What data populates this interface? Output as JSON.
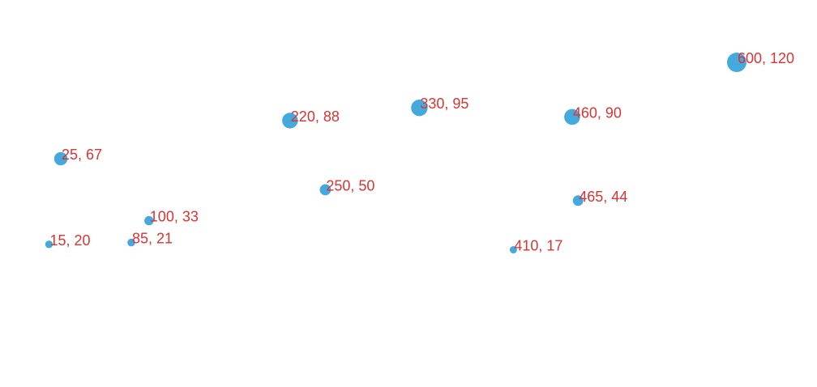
{
  "chart_data": {
    "type": "scatter",
    "title": "",
    "xlabel": "",
    "ylabel": "",
    "grid": false,
    "legend": "none",
    "x_range": [
      5,
      600
    ],
    "y_range": [
      -5,
      120
    ],
    "colors": {
      "point": "#44aadd",
      "label": "#dd3333"
    },
    "points": [
      {
        "x": 15,
        "y": 20,
        "label": "15, 20"
      },
      {
        "x": 25,
        "y": 67,
        "label": "25, 67"
      },
      {
        "x": 85,
        "y": 21,
        "label": "85, 21"
      },
      {
        "x": 100,
        "y": 33,
        "label": "100, 33"
      },
      {
        "x": 220,
        "y": 88,
        "label": "220, 88"
      },
      {
        "x": 250,
        "y": 50,
        "label": "250, 50"
      },
      {
        "x": 330,
        "y": 95,
        "label": "330, 95"
      },
      {
        "x": 410,
        "y": 17,
        "label": "410, 17"
      },
      {
        "x": 460,
        "y": 90,
        "label": "460, 90"
      },
      {
        "x": 465,
        "y": 44,
        "label": "465, 44"
      },
      {
        "x": 600,
        "y": 120,
        "label": "600, 120"
      }
    ]
  }
}
